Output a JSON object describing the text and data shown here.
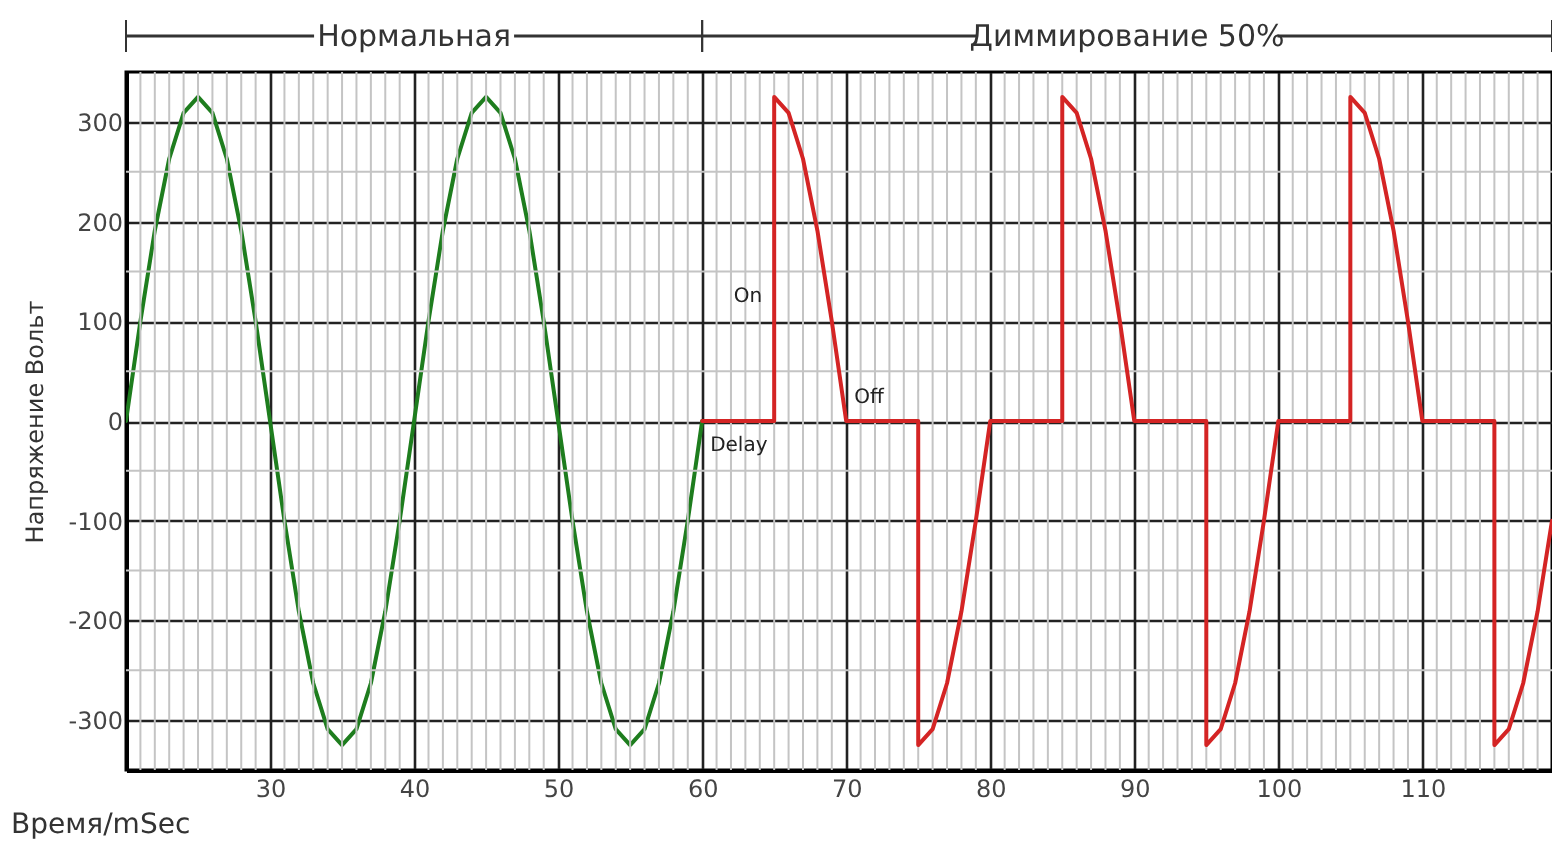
{
  "chart_data": {
    "type": "line",
    "xlabel": "Время/mSec",
    "ylabel": "Напряжение Вольт",
    "annotations": [
      "Нормальная",
      "Диммирование 50%",
      {
        "text": "On",
        "x": 65,
        "y": 125
      },
      {
        "text": "Off",
        "x": 70,
        "y": 0
      },
      {
        "text": "Delay",
        "x": 60,
        "y": 0
      }
    ],
    "series": [
      {
        "color": "#1e7d1e",
        "x": [
          20,
          21,
          22,
          23,
          24,
          25,
          26,
          27,
          28,
          29,
          30,
          31,
          32,
          33,
          34,
          35,
          36,
          37,
          38,
          39,
          40,
          41,
          42,
          43,
          44,
          45,
          46,
          47,
          48,
          49,
          50,
          51,
          52,
          53,
          54,
          55,
          56,
          57,
          58,
          59,
          60
        ],
        "values": [
          0,
          100,
          191,
          263,
          309,
          325,
          309,
          263,
          191,
          100,
          0,
          -100,
          -191,
          -263,
          -309,
          -325,
          -309,
          -263,
          -191,
          -100,
          0,
          100,
          191,
          263,
          309,
          325,
          309,
          263,
          191,
          100,
          0,
          -100,
          -191,
          -263,
          -309,
          -325,
          -309,
          -263,
          -191,
          -100,
          0
        ]
      },
      {
        "color": "#d42424",
        "x": [
          60,
          65,
          65,
          66,
          67,
          68,
          69,
          70,
          75,
          75,
          76,
          77,
          78,
          79,
          80,
          85,
          85,
          86,
          87,
          88,
          89,
          90,
          95,
          95,
          96,
          97,
          98,
          99,
          100,
          105,
          105,
          106,
          107,
          108,
          109,
          110,
          115,
          115,
          116,
          117,
          118,
          119
        ],
        "values": [
          0,
          0,
          325,
          309,
          263,
          191,
          100,
          0,
          0,
          -325,
          -309,
          -263,
          -191,
          -100,
          0,
          0,
          325,
          309,
          263,
          191,
          100,
          0,
          0,
          -325,
          -309,
          -263,
          -191,
          -100,
          0,
          0,
          325,
          309,
          263,
          191,
          100,
          0,
          0,
          -325,
          -309,
          -263,
          -191,
          -100
        ]
      }
    ],
    "xlim": [
      20,
      119
    ],
    "xticks": [
      {
        "value": 21,
        "label": null
      },
      {
        "value": 22,
        "label": null
      },
      {
        "value": 23,
        "label": null
      },
      {
        "value": 24,
        "label": null
      },
      {
        "value": 25,
        "label": null
      },
      {
        "value": 26,
        "label": null
      },
      {
        "value": 27,
        "label": null
      },
      {
        "value": 28,
        "label": null
      },
      {
        "value": 29,
        "label": null
      },
      30,
      {
        "value": 31,
        "label": null
      },
      {
        "value": 32,
        "label": null
      },
      {
        "value": 33,
        "label": null
      },
      {
        "value": 34,
        "label": null
      },
      {
        "value": 35,
        "label": null
      },
      {
        "value": 36,
        "label": null
      },
      {
        "value": 37,
        "label": null
      },
      {
        "value": 38,
        "label": null
      },
      {
        "value": 39,
        "label": null
      },
      40,
      {
        "value": 41,
        "label": null
      },
      {
        "value": 42,
        "label": null
      },
      {
        "value": 43,
        "label": null
      },
      {
        "value": 44,
        "label": null
      },
      {
        "value": 45,
        "label": null
      },
      {
        "value": 46,
        "label": null
      },
      {
        "value": 47,
        "label": null
      },
      {
        "value": 48,
        "label": null
      },
      {
        "value": 49,
        "label": null
      },
      50,
      {
        "value": 51,
        "label": null
      },
      {
        "value": 52,
        "label": null
      },
      {
        "value": 53,
        "label": null
      },
      {
        "value": 54,
        "label": null
      },
      {
        "value": 55,
        "label": null
      },
      {
        "value": 56,
        "label": null
      },
      {
        "value": 57,
        "label": null
      },
      {
        "value": 58,
        "label": null
      },
      {
        "value": 59,
        "label": null
      },
      60,
      {
        "value": 61,
        "label": null
      },
      {
        "value": 62,
        "label": null
      },
      {
        "value": 63,
        "label": null
      },
      {
        "value": 64,
        "label": null
      },
      {
        "value": 65,
        "label": null
      },
      {
        "value": 66,
        "label": null
      },
      {
        "value": 67,
        "label": null
      },
      {
        "value": 68,
        "label": null
      },
      {
        "value": 69,
        "label": null
      },
      70,
      {
        "value": 71,
        "label": null
      },
      {
        "value": 72,
        "label": null
      },
      {
        "value": 73,
        "label": null
      },
      {
        "value": 74,
        "label": null
      },
      {
        "value": 75,
        "label": null
      },
      {
        "value": 76,
        "label": null
      },
      {
        "value": 77,
        "label": null
      },
      {
        "value": 78,
        "label": null
      },
      {
        "value": 79,
        "label": null
      },
      80,
      {
        "value": 81,
        "label": null
      },
      {
        "value": 82,
        "label": null
      },
      {
        "value": 83,
        "label": null
      },
      {
        "value": 84,
        "label": null
      },
      {
        "value": 85,
        "label": null
      },
      {
        "value": 86,
        "label": null
      },
      {
        "value": 87,
        "label": null
      },
      {
        "value": 88,
        "label": null
      },
      {
        "value": 89,
        "label": null
      },
      90,
      {
        "value": 91,
        "label": null
      },
      {
        "value": 92,
        "label": null
      },
      {
        "value": 93,
        "label": null
      },
      {
        "value": 94,
        "label": null
      },
      {
        "value": 95,
        "label": null
      },
      {
        "value": 96,
        "label": null
      },
      {
        "value": 97,
        "label": null
      },
      {
        "value": 98,
        "label": null
      },
      {
        "value": 99,
        "label": null
      },
      100,
      {
        "value": 101,
        "label": null
      },
      {
        "value": 102,
        "label": null
      },
      {
        "value": 103,
        "label": null
      },
      {
        "value": 104,
        "label": null
      },
      {
        "value": 105,
        "label": null
      },
      {
        "value": 106,
        "label": null
      },
      {
        "value": 107,
        "label": null
      },
      {
        "value": 108,
        "label": null
      },
      {
        "value": 109,
        "label": null
      },
      110,
      {
        "value": 111,
        "label": null
      },
      {
        "value": 112,
        "label": null
      },
      {
        "value": 113,
        "label": null
      },
      {
        "value": 114,
        "label": null
      },
      {
        "value": 115,
        "label": null
      },
      {
        "value": 116,
        "label": null
      },
      {
        "value": 117,
        "label": null
      },
      {
        "value": 118,
        "label": null
      }
    ],
    "ylim": [
      -350,
      350
    ],
    "yticks": [
      -300,
      {
        "value": -250,
        "label": null
      },
      -200,
      {
        "value": -150,
        "label": null
      },
      -100,
      {
        "value": -50,
        "label": null
      },
      0,
      {
        "value": 50,
        "label": null
      },
      100,
      {
        "value": 150,
        "label": null
      },
      200,
      {
        "value": 250,
        "label": null
      },
      300
    ],
    "grid": true,
    "marker": "none",
    "line_style": "solid"
  }
}
